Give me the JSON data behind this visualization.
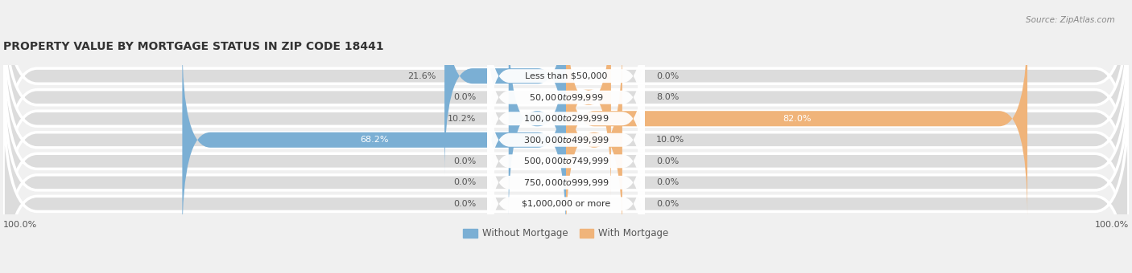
{
  "title": "PROPERTY VALUE BY MORTGAGE STATUS IN ZIP CODE 18441",
  "source": "Source: ZipAtlas.com",
  "categories": [
    "Less than $50,000",
    "$50,000 to $99,999",
    "$100,000 to $299,999",
    "$300,000 to $499,999",
    "$500,000 to $749,999",
    "$750,000 to $999,999",
    "$1,000,000 or more"
  ],
  "without_mortgage": [
    21.6,
    0.0,
    10.2,
    68.2,
    0.0,
    0.0,
    0.0
  ],
  "with_mortgage": [
    0.0,
    8.0,
    82.0,
    10.0,
    0.0,
    0.0,
    0.0
  ],
  "color_without": "#7bafd4",
  "color_with": "#f0b47a",
  "fig_bg_color": "#f0f0f0",
  "bar_bg_color": "#dcdcdc",
  "bar_sep_color": "#ffffff",
  "title_fontsize": 10,
  "label_fontsize": 8,
  "category_fontsize": 8,
  "axis_label_left": "100.0%",
  "axis_label_right": "100.0%",
  "max_val": 100
}
